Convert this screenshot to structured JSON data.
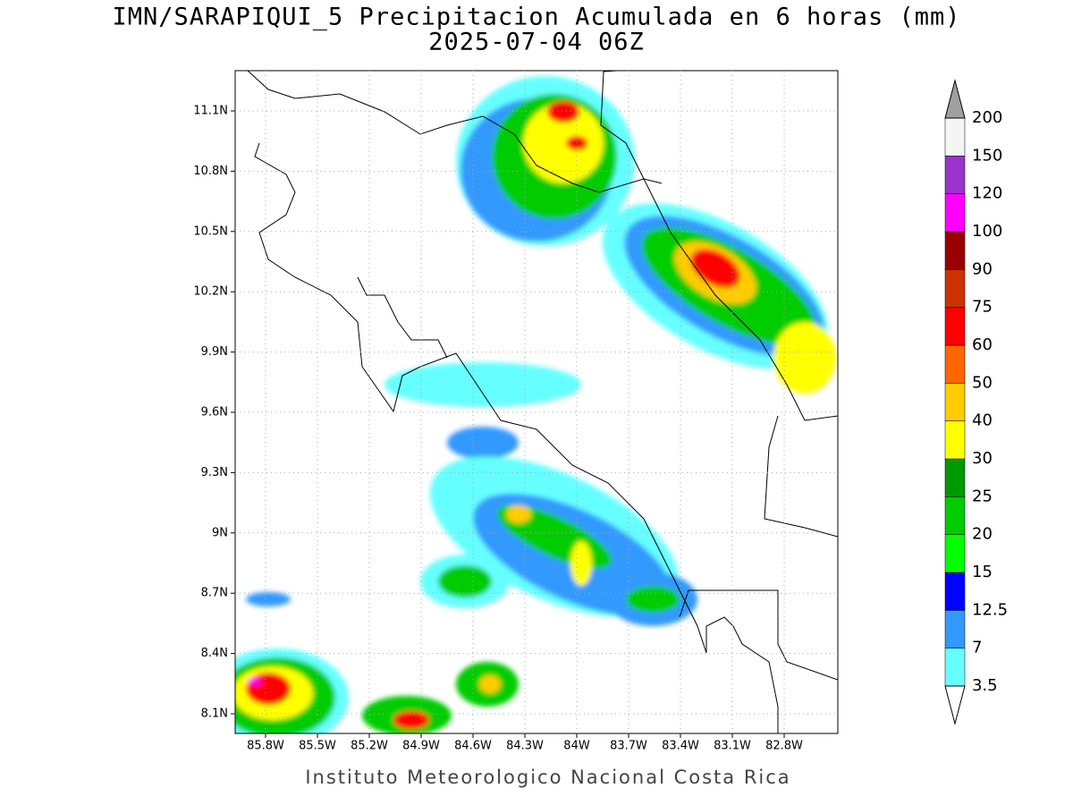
{
  "header": {
    "title": "IMN/SARAPIQUI_5 Precipitacion Acumulada en 6 horas (mm)",
    "subtitle": "2025-07-04 06Z"
  },
  "map": {
    "lon_labels": [
      "85.8W",
      "85.5W",
      "85.2W",
      "84.9W",
      "84.6W",
      "84.3W",
      "84W",
      "83.7W",
      "83.4W",
      "83.1W",
      "82.8W"
    ],
    "lat_labels": [
      "11.1N",
      "10.8N",
      "10.5N",
      "10.2N",
      "9.9N",
      "9.6N",
      "9.3N",
      "9N",
      "8.7N",
      "8.4N",
      "8.1N"
    ]
  },
  "colorbar": {
    "levels": [
      3.5,
      7,
      12.5,
      15,
      20,
      25,
      30,
      40,
      50,
      60,
      75,
      90,
      100,
      120,
      150,
      200
    ],
    "colors": [
      "#66ffff",
      "#3399ff",
      "#0000ff",
      "#00ff00",
      "#00cc00",
      "#009900",
      "#ffff00",
      "#ffcc00",
      "#ff6600",
      "#ff0000",
      "#cc3300",
      "#990000",
      "#ff00ff",
      "#9933cc",
      "#f5f5f5"
    ],
    "over_color": "#a0a0a0",
    "under_color": "#ffffff"
  },
  "footer": {
    "text": "Instituto Meteorologico Nacional Costa Rica"
  }
}
